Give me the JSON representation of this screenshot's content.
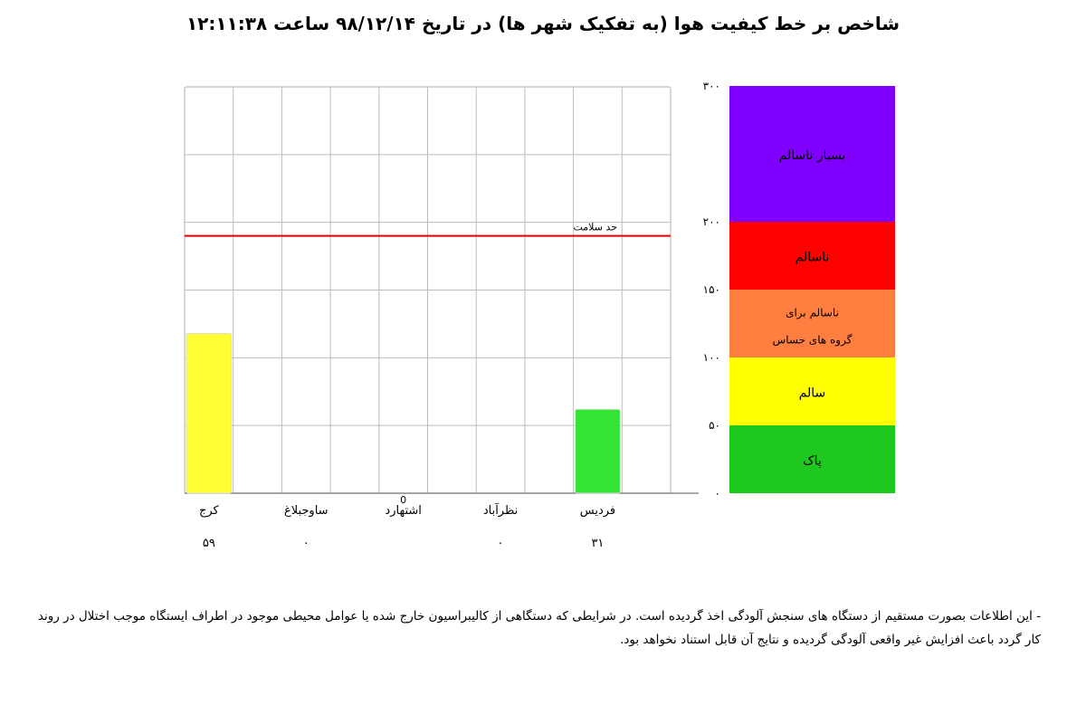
{
  "page": {
    "title": "شاخص بر خط کیفیت هوا (به تفکیک شهر ها) در تاریخ ۹۸/۱۲/۱۴   ساعت ۱۲:۱۱:۳۸",
    "footnote": "- این اطلاعات بصورت مستقیم از دستگاه های سنجش آلودگی اخذ گردیده است. در شرایطی که دستگاهی از کالیبراسیون خارج شده یا عوامل محیطی موجود در اطراف ایستگاه موجب اختلال در روند کار گردد باعث افزایش غیر واقعی آلودگی گردیده و نتایج آن قابل استناد نخواهد بود."
  },
  "chart_data": {
    "type": "bar",
    "categories": [
      "فردیس",
      "نظرآباد",
      "اشتهارد",
      "ساوجبلاغ",
      "کرج"
    ],
    "values": [
      31,
      0,
      0,
      0,
      59
    ],
    "value_labels": [
      "۳۱",
      "۰",
      "",
      "۰",
      "۵۹"
    ],
    "bar_colors": [
      "#33e533",
      "#ffffff",
      "#ffffff",
      "#ffffff",
      "#ffff33"
    ],
    "ylim": [
      0,
      150
    ],
    "grid": true,
    "marker_zero_label": "0",
    "health_line": {
      "value": 95,
      "label": "حد سلامت",
      "color": "#e00000"
    },
    "scale": {
      "ticks": [
        "۰",
        "۵۰",
        "۱۰۰",
        "۱۵۰",
        "۲۰۰",
        "۳۰۰"
      ],
      "bands": [
        {
          "from": 0,
          "to": 50,
          "color": "#1ec81e",
          "label": "پاک"
        },
        {
          "from": 50,
          "to": 100,
          "color": "#ffff00",
          "label": "سالم"
        },
        {
          "from": 100,
          "to": 150,
          "color": "#ff7f40",
          "label": "ناسالم برای گروه های حساس",
          "lines": [
            "ناسالم برای",
            "گروه های حساس"
          ]
        },
        {
          "from": 150,
          "to": 200,
          "color": "#ff0000",
          "label": "ناسالم"
        },
        {
          "from": 200,
          "to": 300,
          "color": "#8000ff",
          "label": "بسیار ناسالم"
        }
      ]
    }
  }
}
